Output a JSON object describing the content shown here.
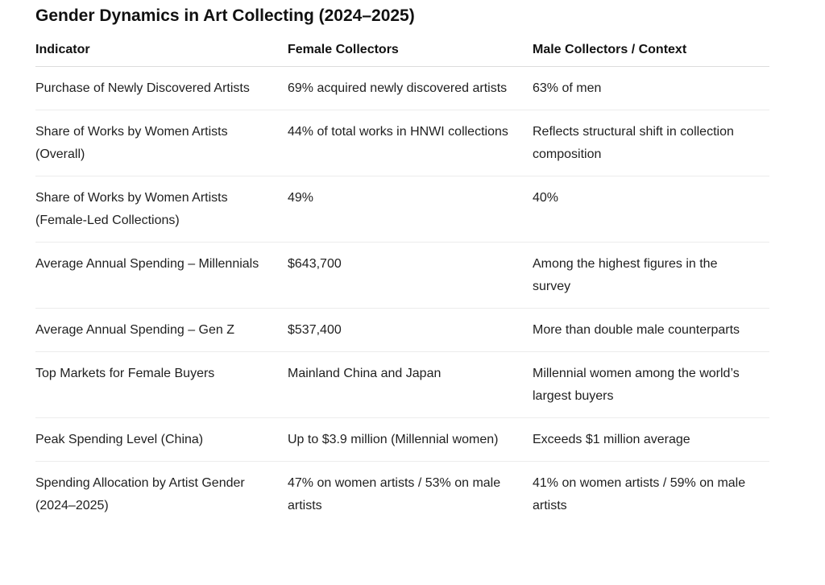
{
  "title": "Gender Dynamics in Art Collecting (2024–2025)",
  "table": {
    "header": [
      "Indicator",
      "Female Collectors",
      "Male Collectors / Context"
    ],
    "rows": [
      [
        "Purchase of Newly Discovered Artists",
        "69% acquired newly discovered artists",
        "63% of men"
      ],
      [
        "Share of Works by Women Artists (Overall)",
        "44% of total works in HNWI collections",
        "Reflects structural shift in collection composition"
      ],
      [
        "Share of Works by Women Artists (Female-Led Collections)",
        "49%",
        "40%"
      ],
      [
        "Average Annual Spending – Millennials",
        "$643,700",
        "Among the highest figures in the survey"
      ],
      [
        "Average Annual Spending – Gen Z",
        "$537,400",
        "More than double male counterparts"
      ],
      [
        "Top Markets for Female Buyers",
        "Mainland China and Japan",
        "Millennial women among the world’s largest buyers"
      ],
      [
        "Peak Spending Level (China)",
        "Up to $3.9 million (Millennial women)",
        "Exceeds $1 million average"
      ],
      [
        "Spending Allocation by Artist Gender (2024–2025)",
        "47% on women artists / 53% on male artists",
        "41% on women artists / 59% on male artists"
      ]
    ]
  }
}
